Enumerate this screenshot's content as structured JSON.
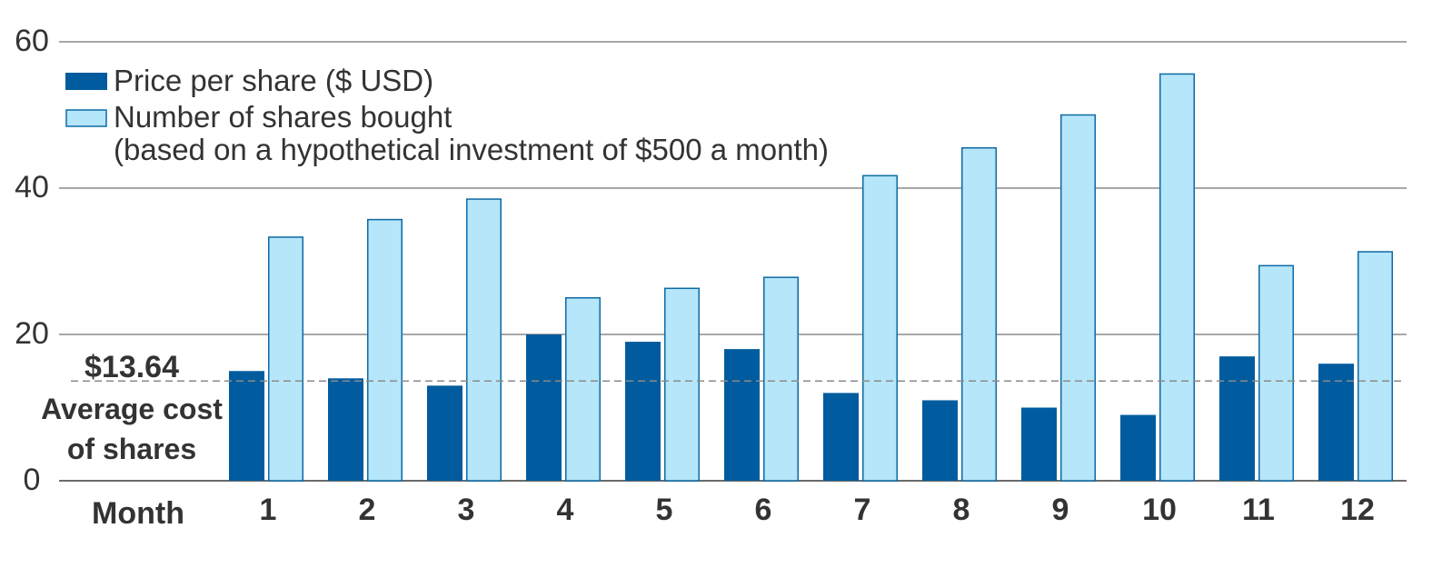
{
  "chart_data": {
    "type": "bar",
    "xlabel": "Month",
    "categories": [
      "1",
      "2",
      "3",
      "4",
      "5",
      "6",
      "7",
      "8",
      "9",
      "10",
      "11",
      "12"
    ],
    "series": [
      {
        "name": "Price per share ($ USD)",
        "color": "#005c9e",
        "values": [
          15,
          14,
          13,
          20,
          19,
          18,
          12,
          11,
          10,
          9,
          17,
          16
        ]
      },
      {
        "name": "Number of shares bought",
        "name_note": "(based on a hypothetical investment of $500 a month)",
        "color": "#b6e6fa",
        "stroke": "#0e6aa5",
        "values": [
          33.3,
          35.7,
          38.5,
          25,
          26.3,
          27.8,
          41.7,
          45.5,
          50,
          55.6,
          29.4,
          31.3
        ]
      }
    ],
    "ylim": [
      0,
      60
    ],
    "yticks": [
      "0",
      "20",
      "40",
      "60"
    ],
    "grid": true,
    "legend_position": "top-left",
    "reference_line": {
      "value": 13.64,
      "label_value": "$13.64",
      "label_line1": "Average cost",
      "label_line2": "of shares",
      "style": "dashed"
    }
  }
}
